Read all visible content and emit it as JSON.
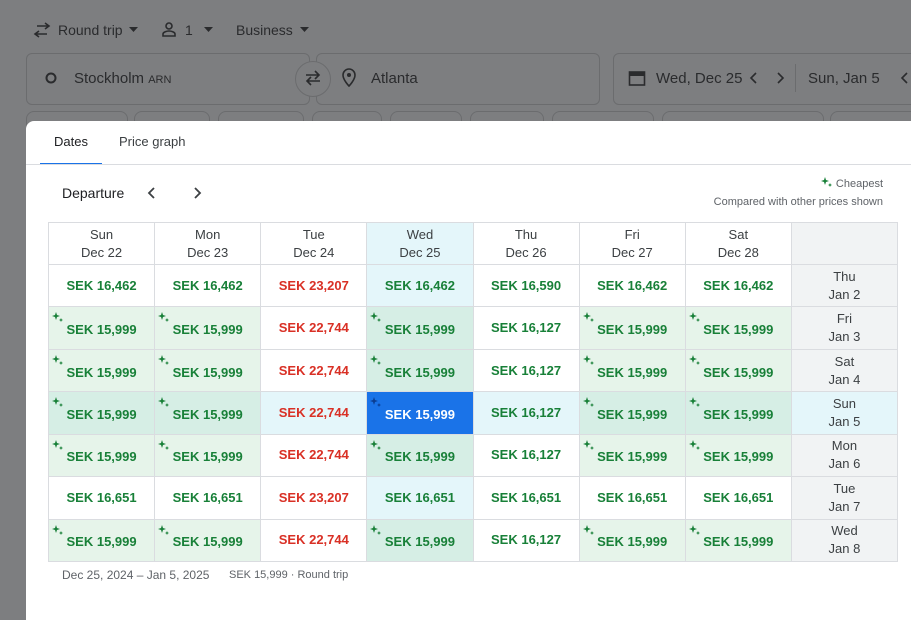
{
  "search_bar": {
    "trip_type": "Round trip",
    "passengers": "1",
    "cabin": "Business",
    "origin": "Stockholm",
    "origin_code": "ARN",
    "destination": "Atlanta",
    "departure_date": "Wed, Dec 25",
    "return_date": "Sun, Jan 5"
  },
  "dialog": {
    "tabs": [
      "Dates",
      "Price graph"
    ],
    "active_tab": 0,
    "nav_label": "Departure",
    "legend": {
      "label": "Cheapest",
      "note": "Compared with other prices shown"
    },
    "grid": {
      "columns": [
        {
          "day": "Sun",
          "date": "Dec 22",
          "price_color": "#188038"
        },
        {
          "day": "Mon",
          "date": "Dec 23",
          "price_color": "#188038"
        },
        {
          "day": "Tue",
          "date": "Dec 24",
          "price_color": "#d93025"
        },
        {
          "day": "Wed",
          "date": "Dec 25",
          "price_color": "#188038"
        },
        {
          "day": "Thu",
          "date": "Dec 26",
          "price_color": "#188038"
        },
        {
          "day": "Fri",
          "date": "Dec 27",
          "price_color": "#188038"
        },
        {
          "day": "Sat",
          "date": "Dec 28",
          "price_color": "#188038"
        }
      ],
      "selected_column": 3,
      "selected_row": 3,
      "rows": [
        {
          "day": "Thu",
          "date": "Jan 2",
          "cells": [
            {
              "price": "SEK 16,462",
              "cheapest": false
            },
            {
              "price": "SEK 16,462",
              "cheapest": false
            },
            {
              "price": "SEK 23,207",
              "cheapest": false
            },
            {
              "price": "SEK 16,462",
              "cheapest": false
            },
            {
              "price": "SEK 16,590",
              "cheapest": false
            },
            {
              "price": "SEK 16,462",
              "cheapest": false
            },
            {
              "price": "SEK 16,462",
              "cheapest": false
            }
          ]
        },
        {
          "day": "Fri",
          "date": "Jan 3",
          "cells": [
            {
              "price": "SEK 15,999",
              "cheapest": true
            },
            {
              "price": "SEK 15,999",
              "cheapest": true
            },
            {
              "price": "SEK 22,744",
              "cheapest": false
            },
            {
              "price": "SEK 15,999",
              "cheapest": true
            },
            {
              "price": "SEK 16,127",
              "cheapest": false
            },
            {
              "price": "SEK 15,999",
              "cheapest": true
            },
            {
              "price": "SEK 15,999",
              "cheapest": true
            }
          ]
        },
        {
          "day": "Sat",
          "date": "Jan 4",
          "cells": [
            {
              "price": "SEK 15,999",
              "cheapest": true
            },
            {
              "price": "SEK 15,999",
              "cheapest": true
            },
            {
              "price": "SEK 22,744",
              "cheapest": false
            },
            {
              "price": "SEK 15,999",
              "cheapest": true
            },
            {
              "price": "SEK 16,127",
              "cheapest": false
            },
            {
              "price": "SEK 15,999",
              "cheapest": true
            },
            {
              "price": "SEK 15,999",
              "cheapest": true
            }
          ]
        },
        {
          "day": "Sun",
          "date": "Jan 5",
          "cells": [
            {
              "price": "SEK 15,999",
              "cheapest": true
            },
            {
              "price": "SEK 15,999",
              "cheapest": true
            },
            {
              "price": "SEK 22,744",
              "cheapest": false
            },
            {
              "price": "SEK 15,999",
              "cheapest": true
            },
            {
              "price": "SEK 16,127",
              "cheapest": false
            },
            {
              "price": "SEK 15,999",
              "cheapest": true
            },
            {
              "price": "SEK 15,999",
              "cheapest": true
            }
          ]
        },
        {
          "day": "Mon",
          "date": "Jan 6",
          "cells": [
            {
              "price": "SEK 15,999",
              "cheapest": true
            },
            {
              "price": "SEK 15,999",
              "cheapest": true
            },
            {
              "price": "SEK 22,744",
              "cheapest": false
            },
            {
              "price": "SEK 15,999",
              "cheapest": true
            },
            {
              "price": "SEK 16,127",
              "cheapest": false
            },
            {
              "price": "SEK 15,999",
              "cheapest": true
            },
            {
              "price": "SEK 15,999",
              "cheapest": true
            }
          ]
        },
        {
          "day": "Tue",
          "date": "Jan 7",
          "cells": [
            {
              "price": "SEK 16,651",
              "cheapest": false
            },
            {
              "price": "SEK 16,651",
              "cheapest": false
            },
            {
              "price": "SEK 23,207",
              "cheapest": false
            },
            {
              "price": "SEK 16,651",
              "cheapest": false
            },
            {
              "price": "SEK 16,651",
              "cheapest": false
            },
            {
              "price": "SEK 16,651",
              "cheapest": false
            },
            {
              "price": "SEK 16,651",
              "cheapest": false
            }
          ]
        },
        {
          "day": "Wed",
          "date": "Jan 8",
          "cells": [
            {
              "price": "SEK 15,999",
              "cheapest": true
            },
            {
              "price": "SEK 15,999",
              "cheapest": true
            },
            {
              "price": "SEK 22,744",
              "cheapest": false
            },
            {
              "price": "SEK 15,999",
              "cheapest": true
            },
            {
              "price": "SEK 16,127",
              "cheapest": false
            },
            {
              "price": "SEK 15,999",
              "cheapest": true
            },
            {
              "price": "SEK 15,999",
              "cheapest": true
            }
          ]
        }
      ]
    },
    "footer": {
      "dates": "Dec 25, 2024 – Jan 5, 2025",
      "summary": "SEK 15,999 · Round trip"
    }
  }
}
